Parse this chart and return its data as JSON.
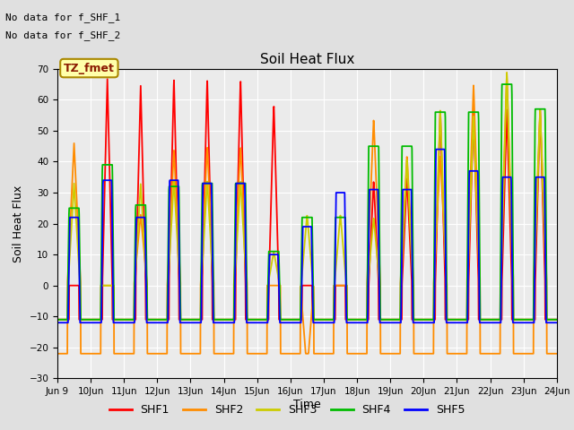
{
  "title": "Soil Heat Flux",
  "ylabel": "Soil Heat Flux",
  "xlabel": "Time",
  "annotations": [
    "No data for f_SHF_1",
    "No data for f_SHF_2"
  ],
  "legend_label": "TZ_fmet",
  "legend_color": "#8B1A00",
  "legend_bg": "#FFFFAA",
  "legend_border": "#AA8800",
  "series_colors": [
    "#FF0000",
    "#FF8C00",
    "#CCCC00",
    "#00BB00",
    "#0000FF"
  ],
  "series_labels": [
    "SHF1",
    "SHF2",
    "SHF3",
    "SHF4",
    "SHF5"
  ],
  "ylim": [
    -30,
    70
  ],
  "yticks": [
    -30,
    -20,
    -10,
    0,
    10,
    20,
    30,
    40,
    50,
    60,
    70
  ],
  "bg_color": "#E0E0E0",
  "plot_bg": "#EBEBEB",
  "n_days": 15,
  "start_day": 9,
  "linewidth": 1.3,
  "pts_per_day": 144
}
